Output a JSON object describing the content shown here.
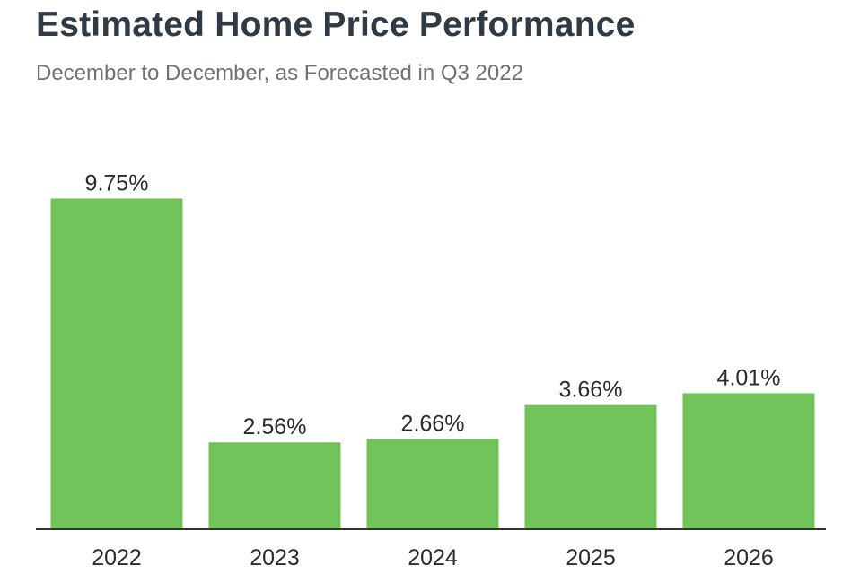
{
  "title": "Estimated Home Price Performance",
  "subtitle": "December to December, as Forecasted in Q3 2022",
  "colors": {
    "bar": "#72c45a",
    "axis": "#333333",
    "title": "#2e3a45",
    "subtitle": "#6b7378"
  },
  "chart_data": {
    "type": "bar",
    "title": "Estimated Home Price Performance",
    "subtitle": "December to December, as Forecasted in Q3 2022",
    "categories": [
      "2022",
      "2023",
      "2024",
      "2025",
      "2026"
    ],
    "values": [
      9.75,
      2.56,
      2.66,
      3.66,
      4.01
    ],
    "data_labels": [
      "9.75%",
      "2.56%",
      "2.66%",
      "3.66%",
      "4.01%"
    ],
    "xlabel": "",
    "ylabel": "",
    "ylim": [
      0,
      10
    ],
    "grid": false,
    "legend": "none"
  }
}
